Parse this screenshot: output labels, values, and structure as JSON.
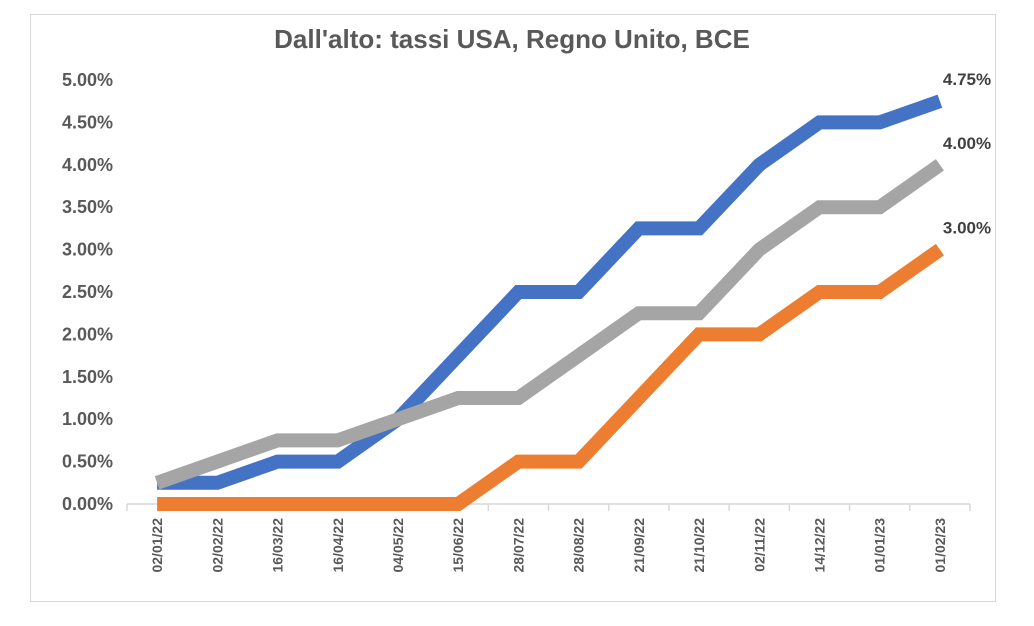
{
  "chart_data": {
    "type": "line",
    "title": "Dall'alto: tassi USA, Regno Unito, BCE",
    "categories": [
      "02/01/22",
      "02/02/22",
      "16/03/22",
      "16/04/22",
      "04/05/22",
      "15/06/22",
      "28/07/22",
      "28/08/22",
      "21/09/22",
      "21/10/22",
      "02/11/22",
      "14/12/22",
      "01/01/23",
      "01/02/23"
    ],
    "y_tick_labels": [
      "0.00%",
      "0.50%",
      "1.00%",
      "1.50%",
      "2.00%",
      "2.50%",
      "3.00%",
      "3.50%",
      "4.00%",
      "4.50%",
      "5.00%"
    ],
    "ylim": [
      0,
      5
    ],
    "grid": false,
    "legend": "none",
    "series": [
      {
        "color": "#4472c4",
        "values": [
          0.25,
          0.25,
          0.5,
          0.5,
          1.0,
          1.75,
          2.5,
          2.5,
          3.25,
          3.25,
          4.0,
          4.5,
          4.5,
          4.75
        ],
        "end_label": "4.75%"
      },
      {
        "color": "#a5a5a5",
        "values": [
          0.25,
          0.5,
          0.75,
          0.75,
          1.0,
          1.25,
          1.25,
          1.75,
          2.25,
          2.25,
          3.0,
          3.5,
          3.5,
          4.0
        ],
        "end_label": "4.00%"
      },
      {
        "color": "#ed7d31",
        "values": [
          0.0,
          0.0,
          0.0,
          0.0,
          0.0,
          0.0,
          0.5,
          0.5,
          1.25,
          2.0,
          2.0,
          2.5,
          2.5,
          3.0
        ],
        "end_label": "3.00%"
      }
    ]
  }
}
